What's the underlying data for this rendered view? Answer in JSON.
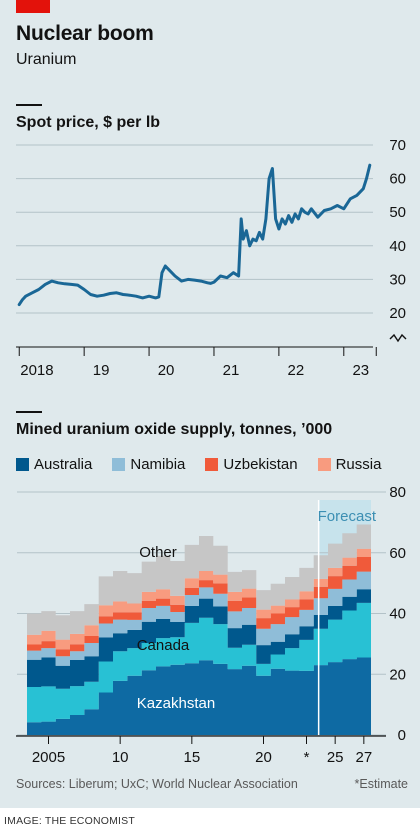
{
  "header": {
    "title": "Nuclear boom",
    "subtitle": "Uranium"
  },
  "colors": {
    "background": "#dfe9ec",
    "brand_red": "#e3120b",
    "price_line": "#1a6796",
    "australia": "#00588d",
    "namibia": "#8fbdd8",
    "uzbekistan": "#f05a3a",
    "russia": "#f89b7f",
    "kazakhstan": "#0e6aa3",
    "canada": "#28c1d4",
    "other": "#c6c6c6",
    "grid": "#b3c2c8"
  },
  "chart_data": [
    {
      "type": "line",
      "title": "Spot price, $ per lb",
      "xlabel": "",
      "ylabel": "",
      "x_tick_labels": [
        "2018",
        "19",
        "20",
        "21",
        "22",
        "23"
      ],
      "y_tick_labels": [
        "20",
        "30",
        "40",
        "50",
        "60",
        "70"
      ],
      "ylim": [
        20,
        70
      ],
      "xlim": [
        2017.95,
        2023.45
      ],
      "axis_break": true,
      "series": [
        {
          "x": [
            2018.0,
            2018.05,
            2018.1,
            2018.2,
            2018.3,
            2018.4,
            2018.5,
            2018.6,
            2018.7,
            2018.8,
            2018.9,
            2019.0,
            2019.1,
            2019.2,
            2019.3,
            2019.4,
            2019.5,
            2019.6,
            2019.7,
            2019.8,
            2019.9,
            2020.0,
            2020.1,
            2020.15,
            2020.2,
            2020.25,
            2020.3,
            2020.4,
            2020.5,
            2020.6,
            2020.7,
            2020.8,
            2020.9,
            2020.95,
            2021.0,
            2021.1,
            2021.2,
            2021.3,
            2021.38,
            2021.42,
            2021.45,
            2021.5,
            2021.55,
            2021.6,
            2021.65,
            2021.7,
            2021.75,
            2021.8,
            2021.85,
            2021.9,
            2021.95,
            2022.0,
            2022.05,
            2022.1,
            2022.15,
            2022.2,
            2022.25,
            2022.3,
            2022.35,
            2022.4,
            2022.45,
            2022.5,
            2022.6,
            2022.7,
            2022.8,
            2022.9,
            2023.0,
            2023.1,
            2023.2,
            2023.3,
            2023.35,
            2023.4
          ],
          "y": [
            22.5,
            24,
            25,
            26,
            27,
            28.5,
            29.5,
            29,
            28.7,
            28.5,
            28.3,
            27,
            25.5,
            25,
            25.3,
            25.8,
            26,
            25.5,
            25.3,
            25,
            24.5,
            25,
            24.5,
            24.8,
            32,
            34,
            33,
            31,
            29.5,
            30,
            29.8,
            29.5,
            29,
            28.8,
            29.2,
            31,
            30.5,
            32,
            31,
            48,
            42,
            44.5,
            40,
            42,
            41.5,
            44,
            42,
            48,
            60,
            63,
            48,
            45,
            48,
            46.5,
            49,
            47,
            49.5,
            48,
            51,
            50,
            49.5,
            51,
            48.5,
            50.5,
            51,
            52,
            51,
            54,
            55,
            57,
            60,
            64
          ]
        }
      ]
    },
    {
      "type": "area",
      "stacked": true,
      "title": "Mined uranium oxide supply, tonnes, ’000",
      "xlabel": "",
      "ylabel": "",
      "x_tick_labels": [
        "2005",
        "10",
        "15",
        "20",
        "*",
        "25",
        "27"
      ],
      "y_tick_labels": [
        "0",
        "20",
        "40",
        "60",
        "80"
      ],
      "ylim": [
        0,
        80
      ],
      "annotation": "Forecast",
      "legend_placement": "top",
      "legend": [
        "Australia",
        "Namibia",
        "Uzbekistan",
        "Russia"
      ],
      "x": [
        2004,
        2005,
        2006,
        2007,
        2008,
        2009,
        2010,
        2011,
        2012,
        2013,
        2014,
        2015,
        2016,
        2017,
        2018,
        2019,
        2020,
        2021,
        2022,
        2023,
        2024,
        2025,
        2026,
        2027
      ],
      "series": [
        {
          "name": "Kazakhstan",
          "values": [
            4.2,
            4.4,
            5.3,
            6.6,
            8.5,
            14,
            17.8,
            19.5,
            21.3,
            22.6,
            23.1,
            23.6,
            24.6,
            23.4,
            21.7,
            22.8,
            19.5,
            21.8,
            21.2,
            21.1,
            23,
            24,
            25,
            25.5
          ]
        },
        {
          "name": "Canada",
          "values": [
            11.6,
            11.6,
            9.9,
            9.5,
            9,
            10.2,
            9.8,
            9.1,
            9,
            9.3,
            9.1,
            13.3,
            14,
            13.1,
            7,
            6.9,
            3.9,
            4.7,
            7.4,
            10.2,
            12,
            14,
            16,
            18
          ]
        },
        {
          "name": "Australia",
          "values": [
            9,
            9.5,
            7.6,
            8.6,
            8.4,
            7.9,
            5.9,
            6,
            7,
            6.3,
            5,
            5.6,
            6.3,
            5.8,
            6.5,
            6.6,
            6.2,
            4.2,
            4.6,
            4.5,
            4.5,
            4.5,
            4.5,
            4.5
          ]
        },
        {
          "name": "Namibia",
          "values": [
            3,
            3.1,
            3.1,
            2.9,
            4.4,
            4.6,
            4.5,
            3.3,
            4.5,
            4.3,
            3.3,
            3.6,
            3.7,
            4.2,
            5.5,
            5.5,
            5.4,
            5.8,
            5.6,
            5.4,
            5.5,
            5.6,
            5.7,
            5.8
          ]
        },
        {
          "name": "Uzbekistan",
          "values": [
            2,
            2.3,
            2.3,
            2.3,
            2.3,
            2.4,
            2.4,
            2.5,
            2.4,
            2.4,
            2.4,
            2.4,
            2.4,
            3.4,
            3.5,
            3.5,
            3.5,
            3.5,
            3.3,
            3.5,
            3.8,
            4.2,
            4.5,
            4.8
          ]
        },
        {
          "name": "Russia",
          "values": [
            3.2,
            3.4,
            3.2,
            3.4,
            3.5,
            3.6,
            3.6,
            2.9,
            2.9,
            3.1,
            2.9,
            3.1,
            3,
            2.9,
            2.9,
            2.9,
            2.8,
            2.6,
            2.5,
            2.6,
            2.6,
            2.7,
            2.7,
            2.7
          ]
        },
        {
          "name": "Other",
          "values": [
            7,
            6.5,
            8,
            7.5,
            7,
            9.5,
            10,
            10,
            10,
            11,
            11.5,
            11,
            11.5,
            9.5,
            6.6,
            6.1,
            6.4,
            7.2,
            7.4,
            7.7,
            7.8,
            8,
            8,
            8
          ]
        }
      ]
    }
  ],
  "footer": {
    "source": "Sources: Liberum; UxC; World Nuclear Association",
    "estimate_note": "*Estimate",
    "credit": "IMAGE: THE ECONOMIST"
  }
}
